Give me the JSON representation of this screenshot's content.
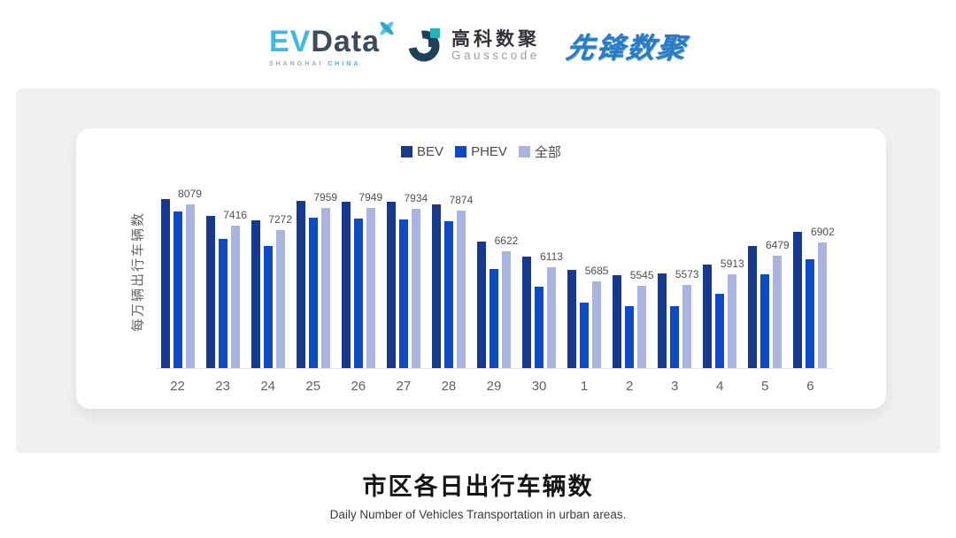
{
  "header": {
    "evdata": {
      "ev": "EV",
      "data": "Data",
      "sub_left": "SHANGHAI",
      "sub_right": "CHINA"
    },
    "gausscode": {
      "cn": "高科数聚",
      "en": "Gausscode"
    },
    "pioneer": {
      "text": "先锋数聚"
    }
  },
  "chart_data": {
    "type": "bar",
    "title": "市区各日出行车辆数",
    "subtitle": "Daily Number of Vehicles Transportation in urban areas.",
    "ylabel": "每万辆出行车辆数",
    "xlabel": "",
    "categories": [
      "22",
      "23",
      "24",
      "25",
      "26",
      "27",
      "28",
      "29",
      "30",
      "1",
      "2",
      "3",
      "4",
      "5",
      "6"
    ],
    "series": [
      {
        "key": "bev",
        "name": "BEV",
        "color": "#16398F",
        "values": [
          8245,
          7700,
          7580,
          8180,
          8160,
          8150,
          8070,
          6920,
          6460,
          6050,
          5890,
          5940,
          6200,
          6780,
          7210
        ]
      },
      {
        "key": "phev",
        "name": "PHEV",
        "color": "#0C4BC5",
        "values": [
          7860,
          7000,
          6790,
          7670,
          7640,
          7600,
          7560,
          6060,
          5520,
          5025,
          4915,
          4915,
          5300,
          5900,
          6360
        ]
      },
      {
        "key": "all",
        "name": "全部",
        "color": "#A9B4E0",
        "values": [
          8079,
          7416,
          7272,
          7959,
          7949,
          7934,
          7874,
          6622,
          6113,
          5685,
          5545,
          5573,
          5913,
          6479,
          6902
        ]
      }
    ],
    "value_labels_series": "全部",
    "value_labels": [
      8079,
      7416,
      7272,
      7959,
      7949,
      7934,
      7874,
      6622,
      6113,
      5685,
      5545,
      5573,
      5913,
      6479,
      6902
    ],
    "ylim": [
      3000,
      9000
    ],
    "grid": false,
    "legend_position": "top"
  },
  "footer": {
    "title": "市区各日出行车辆数",
    "subtitle": "Daily Number of Vehicles Transportation in urban areas."
  },
  "colors": {
    "panel_bg": "#F0F0F1",
    "card_bg": "#FFFFFF",
    "axis_line": "#E3E3E9",
    "evdata_blue": "#3FB9E4",
    "evdata_dark": "#3D4A58",
    "gauss_navy": "#1E4059",
    "gauss_teal": "#26B4B0",
    "pioneer_blue": "#2B7AC4"
  }
}
